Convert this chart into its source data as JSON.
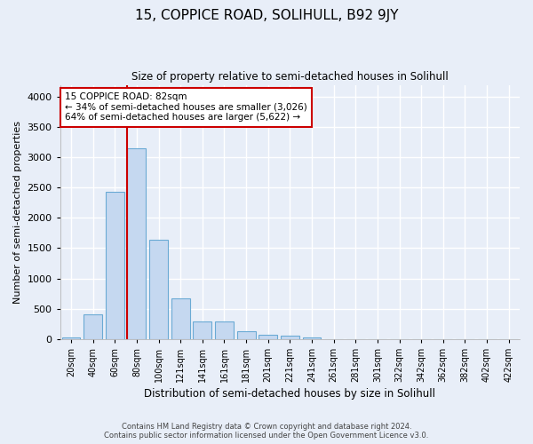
{
  "title": "15, COPPICE ROAD, SOLIHULL, B92 9JY",
  "subtitle": "Size of property relative to semi-detached houses in Solihull",
  "xlabel": "Distribution of semi-detached houses by size in Solihull",
  "ylabel": "Number of semi-detached properties",
  "footer1": "Contains HM Land Registry data © Crown copyright and database right 2024.",
  "footer2": "Contains public sector information licensed under the Open Government Licence v3.0.",
  "bar_labels": [
    "20sqm",
    "40sqm",
    "60sqm",
    "80sqm",
    "100sqm",
    "121sqm",
    "141sqm",
    "161sqm",
    "181sqm",
    "201sqm",
    "221sqm",
    "241sqm",
    "261sqm",
    "281sqm",
    "301sqm",
    "322sqm",
    "342sqm",
    "362sqm",
    "382sqm",
    "402sqm",
    "422sqm"
  ],
  "bar_values": [
    30,
    400,
    2430,
    3150,
    1640,
    670,
    290,
    290,
    120,
    65,
    55,
    30,
    0,
    0,
    0,
    0,
    0,
    0,
    0,
    0,
    0
  ],
  "bar_color": "#c5d8f0",
  "bar_edge_color": "#6aaad4",
  "vline_color": "#cc0000",
  "annotation_text": "15 COPPICE ROAD: 82sqm\n← 34% of semi-detached houses are smaller (3,026)\n64% of semi-detached houses are larger (5,622) →",
  "annotation_box_color": "white",
  "annotation_box_edge": "#cc0000",
  "ylim": [
    0,
    4200
  ],
  "yticks": [
    0,
    500,
    1000,
    1500,
    2000,
    2500,
    3000,
    3500,
    4000
  ],
  "background_color": "#e8eef8",
  "grid_color": "white",
  "vline_index": 3
}
